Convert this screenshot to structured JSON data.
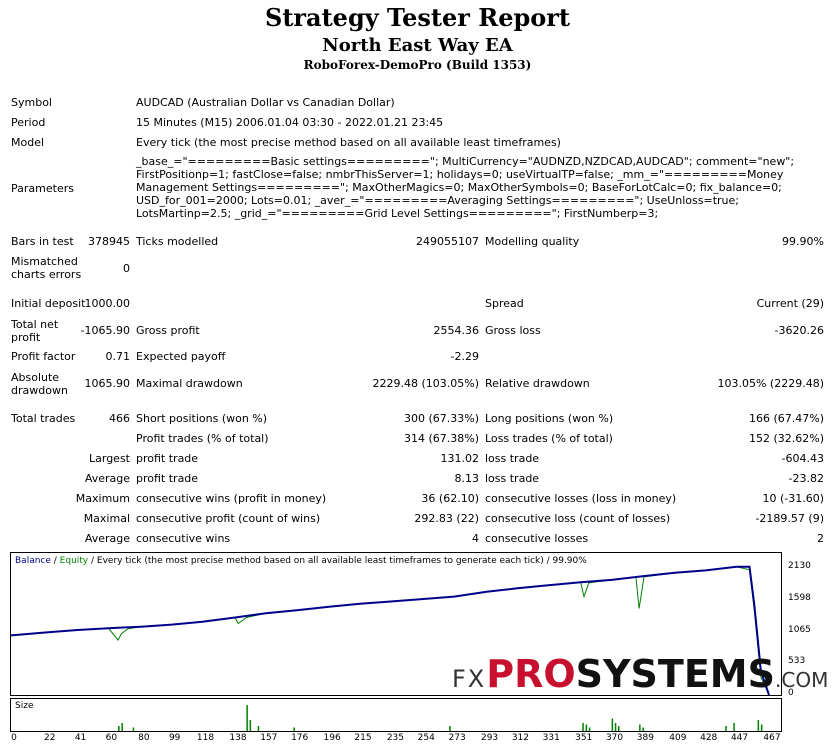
{
  "header": {
    "title": "Strategy Tester Report",
    "ea_name": "North East Way EA",
    "server": "RoboForex-DemoPro (Build 1353)"
  },
  "info": {
    "symbol_label": "Symbol",
    "symbol_value": "AUDCAD (Australian Dollar vs Canadian Dollar)",
    "period_label": "Period",
    "period_value": "15 Minutes (M15) 2006.01.04 03:30 - 2022.01.21 23:45",
    "model_label": "Model",
    "model_value": "Every tick (the most precise method based on all available least timeframes)",
    "parameters_label": "Parameters",
    "parameters_value": "_base_=\"=========Basic settings=========\"; MultiCurrency=\"AUDNZD,NZDCAD,AUDCAD\"; comment=\"new\"; FirstPositionp=1; fastClose=false; nmbrThisServer=1; holidays=0; useVirtualTP=false; _mm_=\"=========Money Management Settings=========\"; MaxOtherMagics=0; MaxOtherSymbols=0; BaseForLotCalc=0; fix_balance=0; USD_for_001=2000; Lots=0.01; _aver_=\"=========Averaging Settings=========\"; UseUnloss=true; LotsMartinp=2.5; _grid_=\"=========Grid Level Settings=========\"; FirstNumberp=3;"
  },
  "stats": {
    "bars_label": "Bars in test",
    "bars_value": "378945",
    "ticks_label": "Ticks modelled",
    "ticks_value": "249055107",
    "quality_label": "Modelling quality",
    "quality_value": "99.90%",
    "mismatch_label_1": "Mismatched",
    "mismatch_label_2": "charts errors",
    "mismatch_value": "0",
    "deposit_label": "Initial deposit",
    "deposit_value": "1000.00",
    "spread_label": "Spread",
    "spread_value": "Current (29)",
    "netprofit_label_1": "Total net",
    "netprofit_label_2": "profit",
    "netprofit_value": "-1065.90",
    "grossprofit_label": "Gross profit",
    "grossprofit_value": "2554.36",
    "grossloss_label": "Gross loss",
    "grossloss_value": "-3620.26",
    "pf_label": "Profit factor",
    "pf_value": "0.71",
    "expected_label": "Expected payoff",
    "expected_value": "-2.29",
    "absdd_label_1": "Absolute",
    "absdd_label_2": "drawdown",
    "absdd_value": "1065.90",
    "maxdd_label": "Maximal drawdown",
    "maxdd_value": "2229.48 (103.05%)",
    "reldd_label": "Relative drawdown",
    "reldd_value": "103.05% (2229.48)",
    "trades_label": "Total trades",
    "trades_value": "466",
    "short_label": "Short positions (won %)",
    "short_value": "300 (67.33%)",
    "long_label": "Long positions (won %)",
    "long_value": "166 (67.47%)",
    "ptrades_label": "Profit trades (% of total)",
    "ptrades_value": "314 (67.38%)",
    "ltrades_label": "Loss trades (% of total)",
    "ltrades_value": "152 (32.62%)",
    "largest_label": "Largest",
    "largest_profit_label": "profit trade",
    "largest_profit_value": "131.02",
    "largest_loss_label": "loss trade",
    "largest_loss_value": "-604.43",
    "average_label": "Average",
    "average_profit_label": "profit trade",
    "average_profit_value": "8.13",
    "average_loss_label": "loss trade",
    "average_loss_value": "-23.82",
    "maximum_label": "Maximum",
    "maxwins_label": "consecutive wins (profit in money)",
    "maxwins_value": "36 (62.10)",
    "maxlosses_label": "consecutive losses (loss in money)",
    "maxlosses_value": "10 (-31.60)",
    "maximal_label": "Maximal",
    "maxprofit_label": "consecutive profit (count of wins)",
    "maxprofit_value": "292.83 (22)",
    "maxloss_label": "consecutive loss (count of losses)",
    "maxloss_value": "-2189.57 (9)",
    "average2_label": "Average",
    "avgwins_label": "consecutive wins",
    "avgwins_value": "4",
    "avglosses_label": "consecutive losses",
    "avglosses_value": "2"
  },
  "chart": {
    "legend_balance": "Balance",
    "legend_sep": " / ",
    "legend_equity": "Equity",
    "legend_rest": " / Every tick (the most precise method based on all available least timeframes to generate each tick) / 99.90%",
    "size_label": "Size",
    "balance_color": "#00008b",
    "equity_color": "#008000"
  },
  "watermark": {
    "fx": "FX",
    "pro": "PRO",
    "systems": "SYSTEMS",
    "com": ".COM"
  },
  "chart_data": {
    "type": "line",
    "y_ticks": [
      "2130",
      "1598",
      "1065",
      "533",
      "0"
    ],
    "x_ticks": [
      "0",
      "22",
      "41",
      "60",
      "80",
      "99",
      "118",
      "138",
      "157",
      "176",
      "196",
      "215",
      "235",
      "254",
      "273",
      "293",
      "312",
      "331",
      "351",
      "370",
      "389",
      "409",
      "428",
      "447",
      "467"
    ],
    "ylim": [
      0,
      2130
    ],
    "xlim": [
      0,
      467
    ],
    "series": [
      {
        "name": "Balance",
        "x": [
          0,
          22,
          41,
          60,
          80,
          99,
          118,
          138,
          157,
          176,
          196,
          215,
          235,
          254,
          273,
          293,
          312,
          331,
          351,
          370,
          389,
          409,
          428,
          447,
          455,
          458,
          462,
          467
        ],
        "y": [
          1000,
          1050,
          1090,
          1120,
          1145,
          1180,
          1230,
          1300,
          1370,
          1420,
          1480,
          1530,
          1570,
          1610,
          1650,
          1730,
          1790,
          1840,
          1890,
          1930,
          1990,
          2050,
          2090,
          2150,
          2150,
          1500,
          400,
          0
        ]
      },
      {
        "name": "Equity",
        "x": [
          0,
          22,
          41,
          60,
          66,
          68,
          72,
          80,
          99,
          118,
          138,
          140,
          145,
          157,
          176,
          196,
          215,
          235,
          254,
          273,
          293,
          312,
          331,
          351,
          353,
          356,
          370,
          385,
          387,
          390,
          409,
          428,
          447,
          455,
          458,
          462,
          467
        ],
        "y": [
          1000,
          1050,
          1090,
          1120,
          920,
          1030,
          1110,
          1145,
          1180,
          1230,
          1300,
          1200,
          1300,
          1370,
          1420,
          1480,
          1530,
          1570,
          1610,
          1650,
          1730,
          1790,
          1840,
          1890,
          1650,
          1880,
          1930,
          1980,
          1450,
          1980,
          2050,
          2090,
          2150,
          2100,
          1400,
          300,
          0
        ]
      }
    ],
    "size_bars": {
      "x": [
        66,
        68,
        75,
        145,
        147,
        152,
        174,
        270,
        352,
        354,
        356,
        370,
        372,
        374,
        387,
        389,
        440,
        445,
        460,
        462
      ],
      "y": [
        0.2,
        0.3,
        0.15,
        0.9,
        0.4,
        0.2,
        0.15,
        0.2,
        0.3,
        0.25,
        0.15,
        0.45,
        0.3,
        0.2,
        0.25,
        0.15,
        0.2,
        0.3,
        0.4,
        0.25
      ]
    }
  }
}
